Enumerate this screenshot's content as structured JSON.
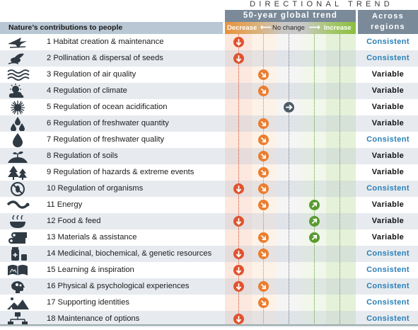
{
  "header": {
    "directional_trend": "DIRECTIONAL TREND",
    "global_trend": "50-year global trend",
    "across_regions": "Across regions",
    "ncp_column": "Nature’s contributions to people",
    "scale": {
      "decrease": "Decrease",
      "no_change": "No change",
      "increase": "Increase"
    }
  },
  "colors": {
    "decrease": "#e0522d",
    "decrease_moderate": "#ec7d2e",
    "no_change": "#4d5b66",
    "increase": "#5a9a32",
    "consistent": "#2a7fb5",
    "variable": "#111111"
  },
  "rows": [
    {
      "label": "1 Habitat creation & maintenance",
      "icon": "bird-icon",
      "markers": [
        "decrease-strong"
      ],
      "region": "Consistent"
    },
    {
      "label": "2 Pollination & dispersal of seeds",
      "icon": "pollinator-icon",
      "markers": [
        "decrease-strong"
      ],
      "region": "Consistent"
    },
    {
      "label": "3 Regulation of air quality",
      "icon": "air-waves-icon",
      "markers": [
        "decrease"
      ],
      "region": "Variable"
    },
    {
      "label": "4 Regulation of climate",
      "icon": "sun-cloud-icon",
      "markers": [
        "decrease"
      ],
      "region": "Variable"
    },
    {
      "label": "5 Regulation of ocean acidification",
      "icon": "urchin-icon",
      "markers": [
        "no-change"
      ],
      "region": "Variable"
    },
    {
      "label": "6 Regulation of freshwater quantity",
      "icon": "water-drops-icon",
      "markers": [
        "decrease"
      ],
      "region": "Variable"
    },
    {
      "label": "7 Regulation of freshwater quality",
      "icon": "water-drop-icon",
      "markers": [
        "decrease"
      ],
      "region": "Consistent"
    },
    {
      "label": "8 Regulation of soils",
      "icon": "soil-sprout-icon",
      "markers": [
        "decrease"
      ],
      "region": "Variable"
    },
    {
      "label": "9 Regulation of hazards & extreme events",
      "icon": "trees-icon",
      "markers": [
        "decrease"
      ],
      "region": "Variable"
    },
    {
      "label": "10 Regulation of organisms",
      "icon": "no-pest-icon",
      "markers": [
        "decrease-strong",
        "decrease"
      ],
      "region": "Consistent"
    },
    {
      "label": "11 Energy",
      "icon": "energy-icon",
      "markers": [
        "decrease",
        "increase"
      ],
      "region": "Variable"
    },
    {
      "label": "12 Food & feed",
      "icon": "food-bowl-icon",
      "markers": [
        "decrease-strong",
        "increase"
      ],
      "region": "Variable"
    },
    {
      "label": "13 Materials & assistance",
      "icon": "logs-icon",
      "markers": [
        "decrease",
        "increase"
      ],
      "region": "Variable"
    },
    {
      "label": "14 Medicinal, biochemical, & genetic resources",
      "icon": "medicine-icon",
      "markers": [
        "decrease-strong",
        "decrease"
      ],
      "region": "Consistent"
    },
    {
      "label": "15 Learning & inspiration",
      "icon": "book-icon",
      "markers": [
        "decrease-strong"
      ],
      "region": "Consistent"
    },
    {
      "label": "16 Physical & psychological experiences",
      "icon": "head-icon",
      "markers": [
        "decrease-strong",
        "decrease"
      ],
      "region": "Consistent"
    },
    {
      "label": "17 Supporting identities",
      "icon": "landscape-icon",
      "markers": [
        "decrease"
      ],
      "region": "Consistent"
    },
    {
      "label": "18 Maintenance of options",
      "icon": "network-icon",
      "markers": [
        "decrease-strong"
      ],
      "region": "Consistent"
    }
  ]
}
